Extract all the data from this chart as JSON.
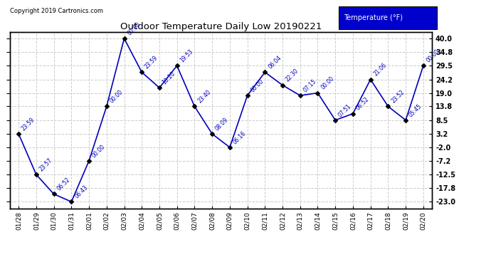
{
  "title": "Outdoor Temperature Daily Low 20190221",
  "copyright": "Copyright 2019 Cartronics.com",
  "legend_label": "Temperature (°F)",
  "x_labels": [
    "01/28",
    "01/29",
    "01/30",
    "01/31",
    "02/01",
    "02/02",
    "02/03",
    "02/04",
    "02/05",
    "02/06",
    "02/07",
    "02/08",
    "02/09",
    "02/10",
    "02/11",
    "02/12",
    "02/13",
    "02/14",
    "02/15",
    "02/16",
    "02/17",
    "02/18",
    "02/19",
    "02/20"
  ],
  "y_values": [
    3.2,
    -12.5,
    -20.0,
    -23.0,
    -7.2,
    13.8,
    40.0,
    27.0,
    21.0,
    29.5,
    13.8,
    3.2,
    -2.0,
    18.0,
    27.0,
    22.0,
    18.0,
    19.0,
    8.5,
    11.0,
    24.2,
    13.8,
    8.5,
    29.5
  ],
  "time_labels": [
    "23:59",
    "23:57",
    "06:52",
    "06:43",
    "00:00",
    "00:00",
    "00:00",
    "23:59",
    "10:20",
    "19:53",
    "23:40",
    "08:09",
    "06:16",
    "00:00",
    "06:04",
    "22:30",
    "07:15",
    "00:00",
    "07:51",
    "06:52",
    "21:06",
    "23:52",
    "05:45",
    "00:00"
  ],
  "y_ticks": [
    40.0,
    34.8,
    29.5,
    24.2,
    19.0,
    13.8,
    8.5,
    3.2,
    -2.0,
    -7.2,
    -12.5,
    -17.8,
    -23.0
  ],
  "line_color": "#0000BB",
  "marker_color": "#000000",
  "bg_color": "#FFFFFF",
  "grid_color": "#CCCCCC",
  "title_color": "#000000",
  "label_color": "#0000BB",
  "legend_bg": "#0000CC",
  "legend_fg": "#FFFFFF",
  "ylim_min": -25.5,
  "ylim_max": 42.5,
  "figwidth": 6.9,
  "figheight": 3.75,
  "dpi": 100
}
